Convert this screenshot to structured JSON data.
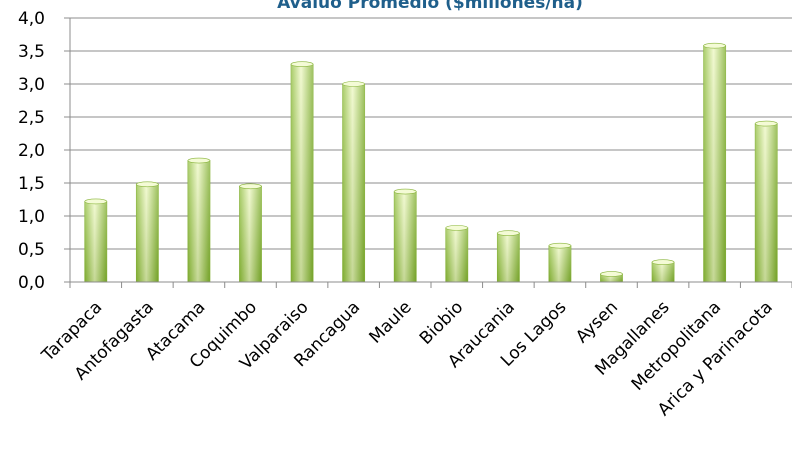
{
  "chart_data": {
    "type": "bar",
    "title": "Avalúo Promedio ($millones/ha)",
    "xlabel": "",
    "ylabel": "",
    "categories": [
      "Tarapaca",
      "Antofagasta",
      "Atacama",
      "Coquimbo",
      "Valparaiso",
      "Rancagua",
      "Maule",
      "Biobio",
      "Araucania",
      "Los Lagos",
      "Aysen",
      "Magallanes",
      "Metropolitana",
      "Arica y Parinacota"
    ],
    "values": [
      1.22,
      1.48,
      1.84,
      1.45,
      3.3,
      3.0,
      1.37,
      0.82,
      0.74,
      0.55,
      0.12,
      0.3,
      3.58,
      2.4
    ],
    "ylim": [
      0,
      4.0
    ],
    "yticks": [
      "0,0",
      "0,5",
      "1,0",
      "1,5",
      "2,0",
      "2,5",
      "3,0",
      "3,5",
      "4,0"
    ],
    "grid": true,
    "legend": "none",
    "colors": {
      "bar_light": "#eef8c4",
      "bar_mid": "#b6dc6a",
      "bar_dark": "#7fae2e",
      "title": "#1f5f8b",
      "grid": "#8c8c8c"
    }
  }
}
